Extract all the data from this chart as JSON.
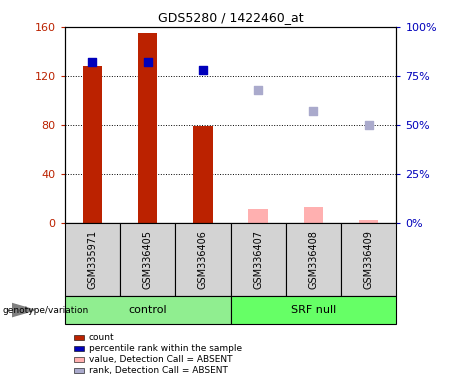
{
  "title": "GDS5280 / 1422460_at",
  "samples": [
    "GSM335971",
    "GSM336405",
    "GSM336406",
    "GSM336407",
    "GSM336408",
    "GSM336409"
  ],
  "groups": [
    {
      "label": "control",
      "indices": [
        0,
        1,
        2
      ],
      "color": "#90EE90"
    },
    {
      "label": "SRF null",
      "indices": [
        3,
        4,
        5
      ],
      "color": "#66FF66"
    }
  ],
  "bar_values": [
    128,
    155,
    79,
    11,
    13,
    2
  ],
  "bar_is_absent": [
    false,
    false,
    false,
    true,
    true,
    true
  ],
  "bar_color_present": "#BB2200",
  "bar_color_absent": "#FFB0B0",
  "dot_pct": [
    82,
    82,
    78,
    68,
    57,
    50
  ],
  "dot_is_absent": [
    false,
    false,
    false,
    true,
    true,
    true
  ],
  "dot_color_present": "#0000BB",
  "dot_color_absent": "#AAAACC",
  "ylim_left": [
    0,
    160
  ],
  "ylim_right": [
    0,
    100
  ],
  "yticks_left": [
    0,
    40,
    80,
    120,
    160
  ],
  "yticks_right": [
    0,
    25,
    50,
    75,
    100
  ],
  "yticks_right_labels": [
    "0%",
    "25%",
    "50%",
    "75%",
    "100%"
  ],
  "bar_width": 0.35,
  "dot_size": 40,
  "genotype_label": "genotype/variation",
  "legend_items": [
    {
      "label": "count",
      "color": "#BB2200"
    },
    {
      "label": "percentile rank within the sample",
      "color": "#0000BB"
    },
    {
      "label": "value, Detection Call = ABSENT",
      "color": "#FFB0B0"
    },
    {
      "label": "rank, Detection Call = ABSENT",
      "color": "#AAAACC"
    }
  ]
}
